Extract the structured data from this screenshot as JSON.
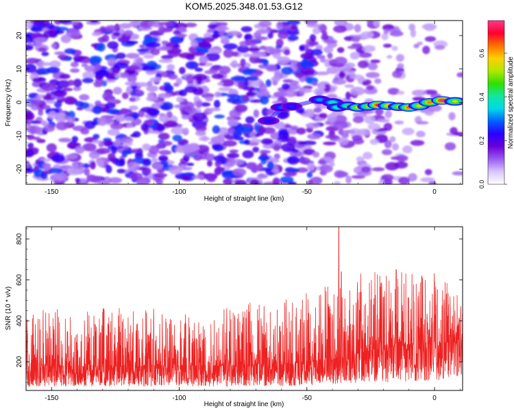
{
  "title": "KOM5.2025.348.01.53.G12",
  "chart_data": [
    {
      "type": "heatmap",
      "xlabel": "Height of straight line (km)",
      "ylabel": "Frequency (Hz)",
      "xlim": [
        -160,
        11
      ],
      "ylim": [
        -24.5,
        24.5
      ],
      "xticks": [
        -150,
        -100,
        -50,
        0
      ],
      "yticks": [
        -20,
        -10,
        0,
        10,
        20
      ],
      "colorbar": {
        "label": "Normalized spectral amplitude",
        "range": [
          0,
          0.75
        ],
        "ticks": [
          "0.0",
          "0.2",
          "0.4",
          "0.6"
        ],
        "tick_values": [
          0,
          0.2,
          0.4,
          0.6
        ],
        "colors": [
          "#ffffff",
          "#d8c6ff",
          "#9a5cf0",
          "#6a00d8",
          "#2a00ff",
          "#0060ff",
          "#00d8e8",
          "#10e8a0",
          "#30e000",
          "#b0e800",
          "#ffd000",
          "#ff7000",
          "#ff0030",
          "#ff3a8a"
        ]
      },
      "noise_region_x": [
        -160,
        -40
      ],
      "noise_density_falloff_x": [
        -45,
        11
      ],
      "signal_track": [
        {
          "x": -65,
          "y": -5.5,
          "amp": 0.12
        },
        {
          "x": -60,
          "y": -1.5,
          "amp": 0.18
        },
        {
          "x": -56,
          "y": -1.2,
          "amp": 0.14
        },
        {
          "x": -45,
          "y": 0.8,
          "amp": 0.22
        },
        {
          "x": -40,
          "y": 0.0,
          "amp": 0.3
        },
        {
          "x": -38,
          "y": -1.5,
          "amp": 0.32
        },
        {
          "x": -34,
          "y": -1.0,
          "amp": 0.36
        },
        {
          "x": -30,
          "y": -1.5,
          "amp": 0.5
        },
        {
          "x": -26,
          "y": -1.2,
          "amp": 0.45
        },
        {
          "x": -22,
          "y": -0.8,
          "amp": 0.72
        },
        {
          "x": -18,
          "y": -1.0,
          "amp": 0.55
        },
        {
          "x": -14,
          "y": -1.3,
          "amp": 0.46
        },
        {
          "x": -10,
          "y": -1.5,
          "amp": 0.62
        },
        {
          "x": -6,
          "y": -1.0,
          "amp": 0.5
        },
        {
          "x": -2,
          "y": 0.0,
          "amp": 0.6
        },
        {
          "x": 3,
          "y": 0.6,
          "amp": 0.74
        },
        {
          "x": 8,
          "y": 0.3,
          "amp": 0.48
        }
      ]
    },
    {
      "type": "line",
      "xlabel": "Height of straight line (km)",
      "ylabel": "SNR (10 * v/v)",
      "xlim": [
        -160,
        11
      ],
      "ylim": [
        60,
        860
      ],
      "xticks": [
        -150,
        -100,
        -50,
        0
      ],
      "yticks": [
        200,
        400,
        600,
        800
      ],
      "series": [
        {
          "name": "SNR",
          "color": "#ee2020",
          "description": "dense noise",
          "baseline": [
            {
              "x": -160,
              "mean": 175,
              "range": [
                80,
                450
              ]
            },
            {
              "x": -100,
              "mean": 180,
              "range": [
                80,
                480
              ]
            },
            {
              "x": -60,
              "mean": 185,
              "range": [
                80,
                500
              ]
            },
            {
              "x": -40,
              "mean": 210,
              "range": [
                90,
                620
              ]
            },
            {
              "x": -20,
              "mean": 270,
              "range": [
                100,
                650
              ]
            },
            {
              "x": 0,
              "mean": 290,
              "range": [
                110,
                640
              ]
            },
            {
              "x": 11,
              "mean": 300,
              "range": [
                120,
                540
              ]
            }
          ],
          "peaks": [
            {
              "x": -37.5,
              "y": 860
            },
            {
              "x": -36.5,
              "y": 640
            },
            {
              "x": -15,
              "y": 650
            },
            {
              "x": -5,
              "y": 620
            },
            {
              "x": 0,
              "y": 590
            }
          ]
        }
      ]
    }
  ]
}
